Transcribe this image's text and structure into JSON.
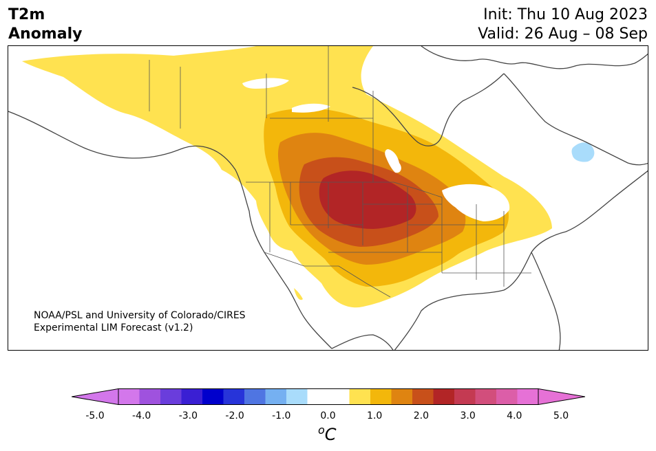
{
  "title": {
    "left_line1": "T2m",
    "left_line2": "Anomaly",
    "init": "Init: Thu 10 Aug 2023",
    "valid": "Valid: 26 Aug – 08 Sep"
  },
  "credit": {
    "line1": "NOAA/PSL and University of Colorado/CIRES",
    "line2": "Experimental LIM Forecast (v1.2)"
  },
  "colorbar": {
    "unit_base": "C",
    "unit_sup": "o",
    "colors": [
      "#d377eb",
      "#9f52de",
      "#6a3ddc",
      "#3a1fd3",
      "#0000cc",
      "#2734d9",
      "#4f75e2",
      "#75b0f1",
      "#a9dcfb",
      "#ffffff",
      "#ffffff",
      "#ffe250",
      "#f3b70b",
      "#df8411",
      "#c8501a",
      "#b22526",
      "#c43a52",
      "#d24e7c",
      "#dc5ea8",
      "#e671d6"
    ],
    "tick_labels": [
      "-5.0",
      "-4.0",
      "-3.0",
      "-2.0",
      "-1.0",
      "0.0",
      "1.0",
      "2.0",
      "3.0",
      "4.0",
      "5.0"
    ],
    "extend": "both"
  },
  "anomaly_colors": {
    "level_0_5": "#ffe250",
    "level_1_0": "#f3b70b",
    "level_1_5": "#df8411",
    "level_2_0": "#c8501a",
    "level_2_5": "#b22526",
    "level_neg_1_0": "#a9dcfb"
  }
}
